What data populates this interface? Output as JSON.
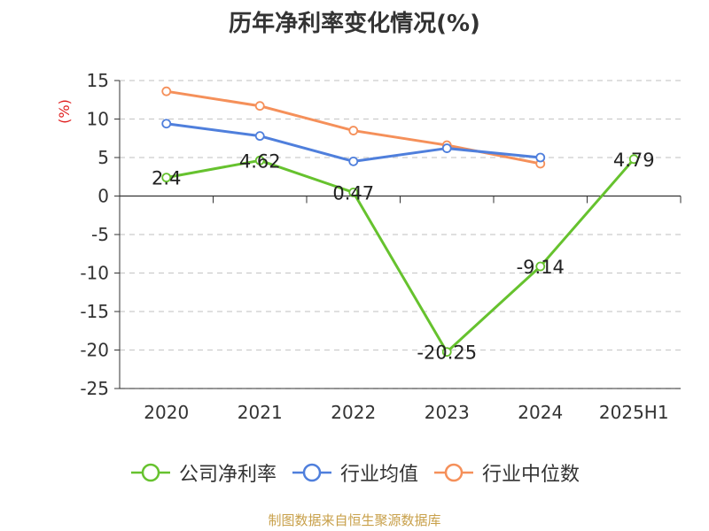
{
  "chart_data": {
    "type": "line",
    "title": "历年净利率变化情况(%)",
    "ylabel": "(%)",
    "xlabel": "",
    "categories": [
      "2020",
      "2021",
      "2022",
      "2023",
      "2024",
      "2025H1"
    ],
    "ylim": [
      -25,
      15
    ],
    "yticks": [
      15,
      10,
      5,
      0,
      -5,
      -10,
      -15,
      -20,
      -25
    ],
    "grid": true,
    "legend_position": "bottom",
    "series": [
      {
        "name": "公司净利率",
        "color": "#66c22e",
        "values": [
          2.4,
          4.62,
          0.47,
          -20.25,
          -9.14,
          4.79
        ],
        "labels": [
          "2.4",
          "4.62",
          "0.47",
          "-20.25",
          "-9.14",
          "4.79"
        ]
      },
      {
        "name": "行业均值",
        "color": "#4f7fdc",
        "values": [
          9.4,
          7.8,
          4.5,
          6.2,
          5.0,
          null
        ]
      },
      {
        "name": "行业中位数",
        "color": "#f5905a",
        "values": [
          13.6,
          11.7,
          8.5,
          6.6,
          4.2,
          null
        ]
      }
    ]
  },
  "source": "制图数据来自恒生聚源数据库",
  "colors": {
    "axis": "#333333",
    "grid": "#cccccc",
    "ylabel": "#e02020",
    "text": "#333333"
  }
}
